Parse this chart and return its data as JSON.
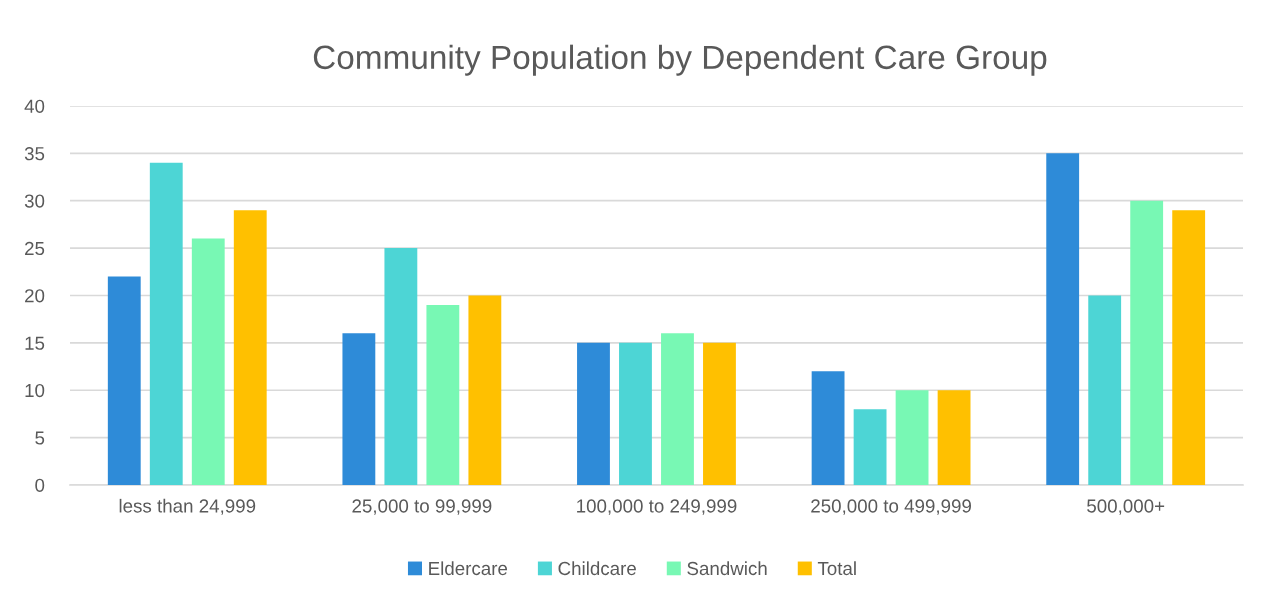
{
  "chart_data": {
    "type": "bar",
    "title": "Community Population by Dependent Care Group",
    "categories": [
      "less than 24,999",
      "25,000 to 99,999",
      "100,000 to 249,999",
      "250,000 to 499,999",
      "500,000+"
    ],
    "series": [
      {
        "name": "Eldercare",
        "color": "#2e8bd8",
        "values": [
          22,
          16,
          15,
          12,
          35
        ]
      },
      {
        "name": "Childcare",
        "color": "#4dd5d5",
        "values": [
          34,
          25,
          15,
          8,
          20
        ]
      },
      {
        "name": "Sandwich",
        "color": "#78f8b4",
        "values": [
          26,
          19,
          16,
          10,
          30
        ]
      },
      {
        "name": "Total",
        "color": "#ffc000",
        "values": [
          29,
          20,
          15,
          10,
          29
        ]
      }
    ],
    "ylim": [
      0,
      40
    ],
    "yticks": [
      0,
      5,
      10,
      15,
      20,
      25,
      30,
      35,
      40
    ],
    "grid": "y",
    "legend": "bottom"
  }
}
